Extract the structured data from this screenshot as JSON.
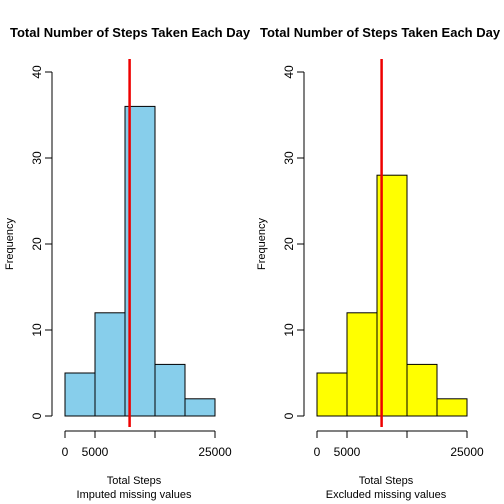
{
  "chart_data": [
    {
      "type": "bar",
      "title": "Total Number of Steps Taken Each Day",
      "xlabel": "Total Steps",
      "sublabel": "Imputed missing values",
      "ylabel": "Frequency",
      "bins": [
        [
          0,
          5000
        ],
        [
          5000,
          10000
        ],
        [
          10000,
          15000
        ],
        [
          15000,
          20000
        ],
        [
          20000,
          25000
        ]
      ],
      "values": [
        5,
        12,
        36,
        6,
        2
      ],
      "bar_color": "#87CEEB",
      "mean_line": 10766,
      "mean_line_color": "#EE0000",
      "xlim": [
        0,
        25000
      ],
      "ylim": [
        0,
        40
      ],
      "xticks": [
        0,
        5000,
        15000,
        25000
      ],
      "xtick_labels": [
        "0",
        "5000",
        "",
        "25000"
      ],
      "yticks": [
        0,
        10,
        20,
        30,
        40
      ],
      "ytick_labels": [
        "0",
        "10",
        "20",
        "30",
        "40"
      ],
      "grid": false
    },
    {
      "type": "bar",
      "title": "Total Number of Steps Taken Each Day",
      "xlabel": "Total Steps",
      "sublabel": "Excluded missing values",
      "ylabel": "Frequency",
      "bins": [
        [
          0,
          5000
        ],
        [
          5000,
          10000
        ],
        [
          10000,
          15000
        ],
        [
          15000,
          20000
        ],
        [
          20000,
          25000
        ]
      ],
      "values": [
        5,
        12,
        28,
        6,
        2
      ],
      "bar_color": "#FFFF00",
      "mean_line": 10766,
      "mean_line_color": "#EE0000",
      "xlim": [
        0,
        25000
      ],
      "ylim": [
        0,
        40
      ],
      "xticks": [
        0,
        5000,
        15000,
        25000
      ],
      "xtick_labels": [
        "0",
        "5000",
        "",
        "25000"
      ],
      "yticks": [
        0,
        10,
        20,
        30,
        40
      ],
      "ytick_labels": [
        "0",
        "10",
        "20",
        "30",
        "40"
      ],
      "grid": false
    }
  ]
}
